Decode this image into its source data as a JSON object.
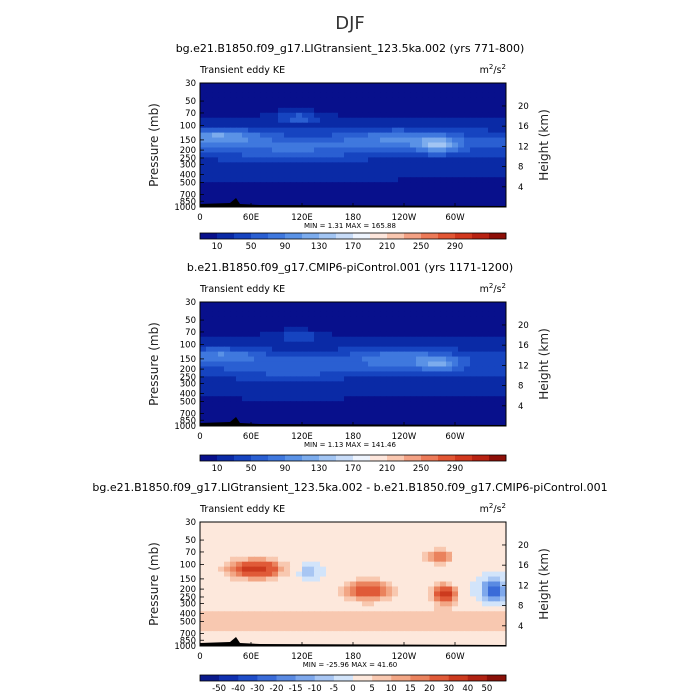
{
  "figure_title": "DJF",
  "chart_data": [
    {
      "type": "heatmap",
      "title": "bg.e21.B1850.f09_g17.LIGtransient_123.5ka.002 (yrs 771-800)",
      "left_label": "Transient eddy KE",
      "right_label": "m",
      "units_exp": "2",
      "units_sep": "/s",
      "xlabel": "",
      "ylabel": "Pressure (mb)",
      "y2label": "Height (km)",
      "x_ticks": [
        "0",
        "60E",
        "120E",
        "180",
        "120W",
        "60W"
      ],
      "y_ticks": [
        "30",
        "50",
        "70",
        "100",
        "150",
        "200",
        "250",
        "300",
        "400",
        "500",
        "700",
        "850",
        "1000"
      ],
      "y2_ticks": [
        "20",
        "16",
        "12",
        "8",
        "4"
      ],
      "min_label": "MIN =",
      "min_value": "1.31",
      "max_label": "MAX =",
      "max_value": "165.88",
      "colorbar_labels": [
        "10",
        "50",
        "90",
        "130",
        "170",
        "210",
        "250",
        "290"
      ],
      "colorbar_colors": [
        "#08108c",
        "#0a2aa6",
        "#1644c0",
        "#2a5fd2",
        "#3f78de",
        "#5a92e6",
        "#7caced",
        "#a2c5f3",
        "#c8dcf8",
        "#eef4fd",
        "#fde6dc",
        "#f9c7b0",
        "#f3a184",
        "#ec7a58",
        "#e25634",
        "#d2381e",
        "#b82212",
        "#8e0f08"
      ],
      "data_range": [
        0,
        300
      ]
    },
    {
      "type": "heatmap",
      "title": "b.e21.B1850.f09_g17.CMIP6-piControl.001 (yrs 1171-1200)",
      "left_label": "Transient eddy KE",
      "right_label": "m",
      "units_exp": "2",
      "units_sep": "/s",
      "xlabel": "",
      "ylabel": "Pressure (mb)",
      "y2label": "Height (km)",
      "x_ticks": [
        "0",
        "60E",
        "120E",
        "180",
        "120W",
        "60W"
      ],
      "y_ticks": [
        "30",
        "50",
        "70",
        "100",
        "150",
        "200",
        "250",
        "300",
        "400",
        "500",
        "700",
        "850",
        "1000"
      ],
      "y2_ticks": [
        "20",
        "16",
        "12",
        "8",
        "4"
      ],
      "min_label": "MIN =",
      "min_value": "1.13",
      "max_label": "MAX =",
      "max_value": "141.46",
      "colorbar_labels": [
        "10",
        "50",
        "90",
        "130",
        "170",
        "210",
        "250",
        "290"
      ],
      "colorbar_colors": [
        "#08108c",
        "#0a2aa6",
        "#1644c0",
        "#2a5fd2",
        "#3f78de",
        "#5a92e6",
        "#7caced",
        "#a2c5f3",
        "#c8dcf8",
        "#eef4fd",
        "#fde6dc",
        "#f9c7b0",
        "#f3a184",
        "#ec7a58",
        "#e25634",
        "#d2381e",
        "#b82212",
        "#8e0f08"
      ],
      "data_range": [
        0,
        300
      ]
    },
    {
      "type": "heatmap",
      "title": "bg.e21.B1850.f09_g17.LIGtransient_123.5ka.002 - b.e21.B1850.f09_g17.CMIP6-piControl.001",
      "left_label": "Transient eddy KE",
      "right_label": "m",
      "units_exp": "2",
      "units_sep": "/s",
      "xlabel": "",
      "ylabel": "Pressure (mb)",
      "y2label": "Height (km)",
      "x_ticks": [
        "0",
        "60E",
        "120E",
        "180",
        "120W",
        "60W"
      ],
      "y_ticks": [
        "30",
        "50",
        "70",
        "100",
        "150",
        "200",
        "250",
        "300",
        "400",
        "500",
        "700",
        "850",
        "1000"
      ],
      "y2_ticks": [
        "20",
        "16",
        "12",
        "8",
        "4"
      ],
      "min_label": "MIN =",
      "min_value": "-25.96",
      "max_label": "MAX =",
      "max_value": "41.60",
      "colorbar_labels": [
        "-50",
        "-40",
        "-30",
        "-20",
        "-15",
        "-10",
        "-5",
        "0",
        "5",
        "10",
        "15",
        "20",
        "30",
        "40",
        "50"
      ],
      "colorbar_colors": [
        "#0a1a8c",
        "#1030b0",
        "#1f4dc8",
        "#3a6bd8",
        "#5a8ae2",
        "#7ea8ec",
        "#a8c6f3",
        "#d2e4fa",
        "#fde8dc",
        "#f8c8b0",
        "#f2a685",
        "#ea825d",
        "#e05a38",
        "#cc3a1e",
        "#b02212",
        "#8a1008"
      ],
      "data_range": [
        -50,
        50
      ]
    }
  ]
}
